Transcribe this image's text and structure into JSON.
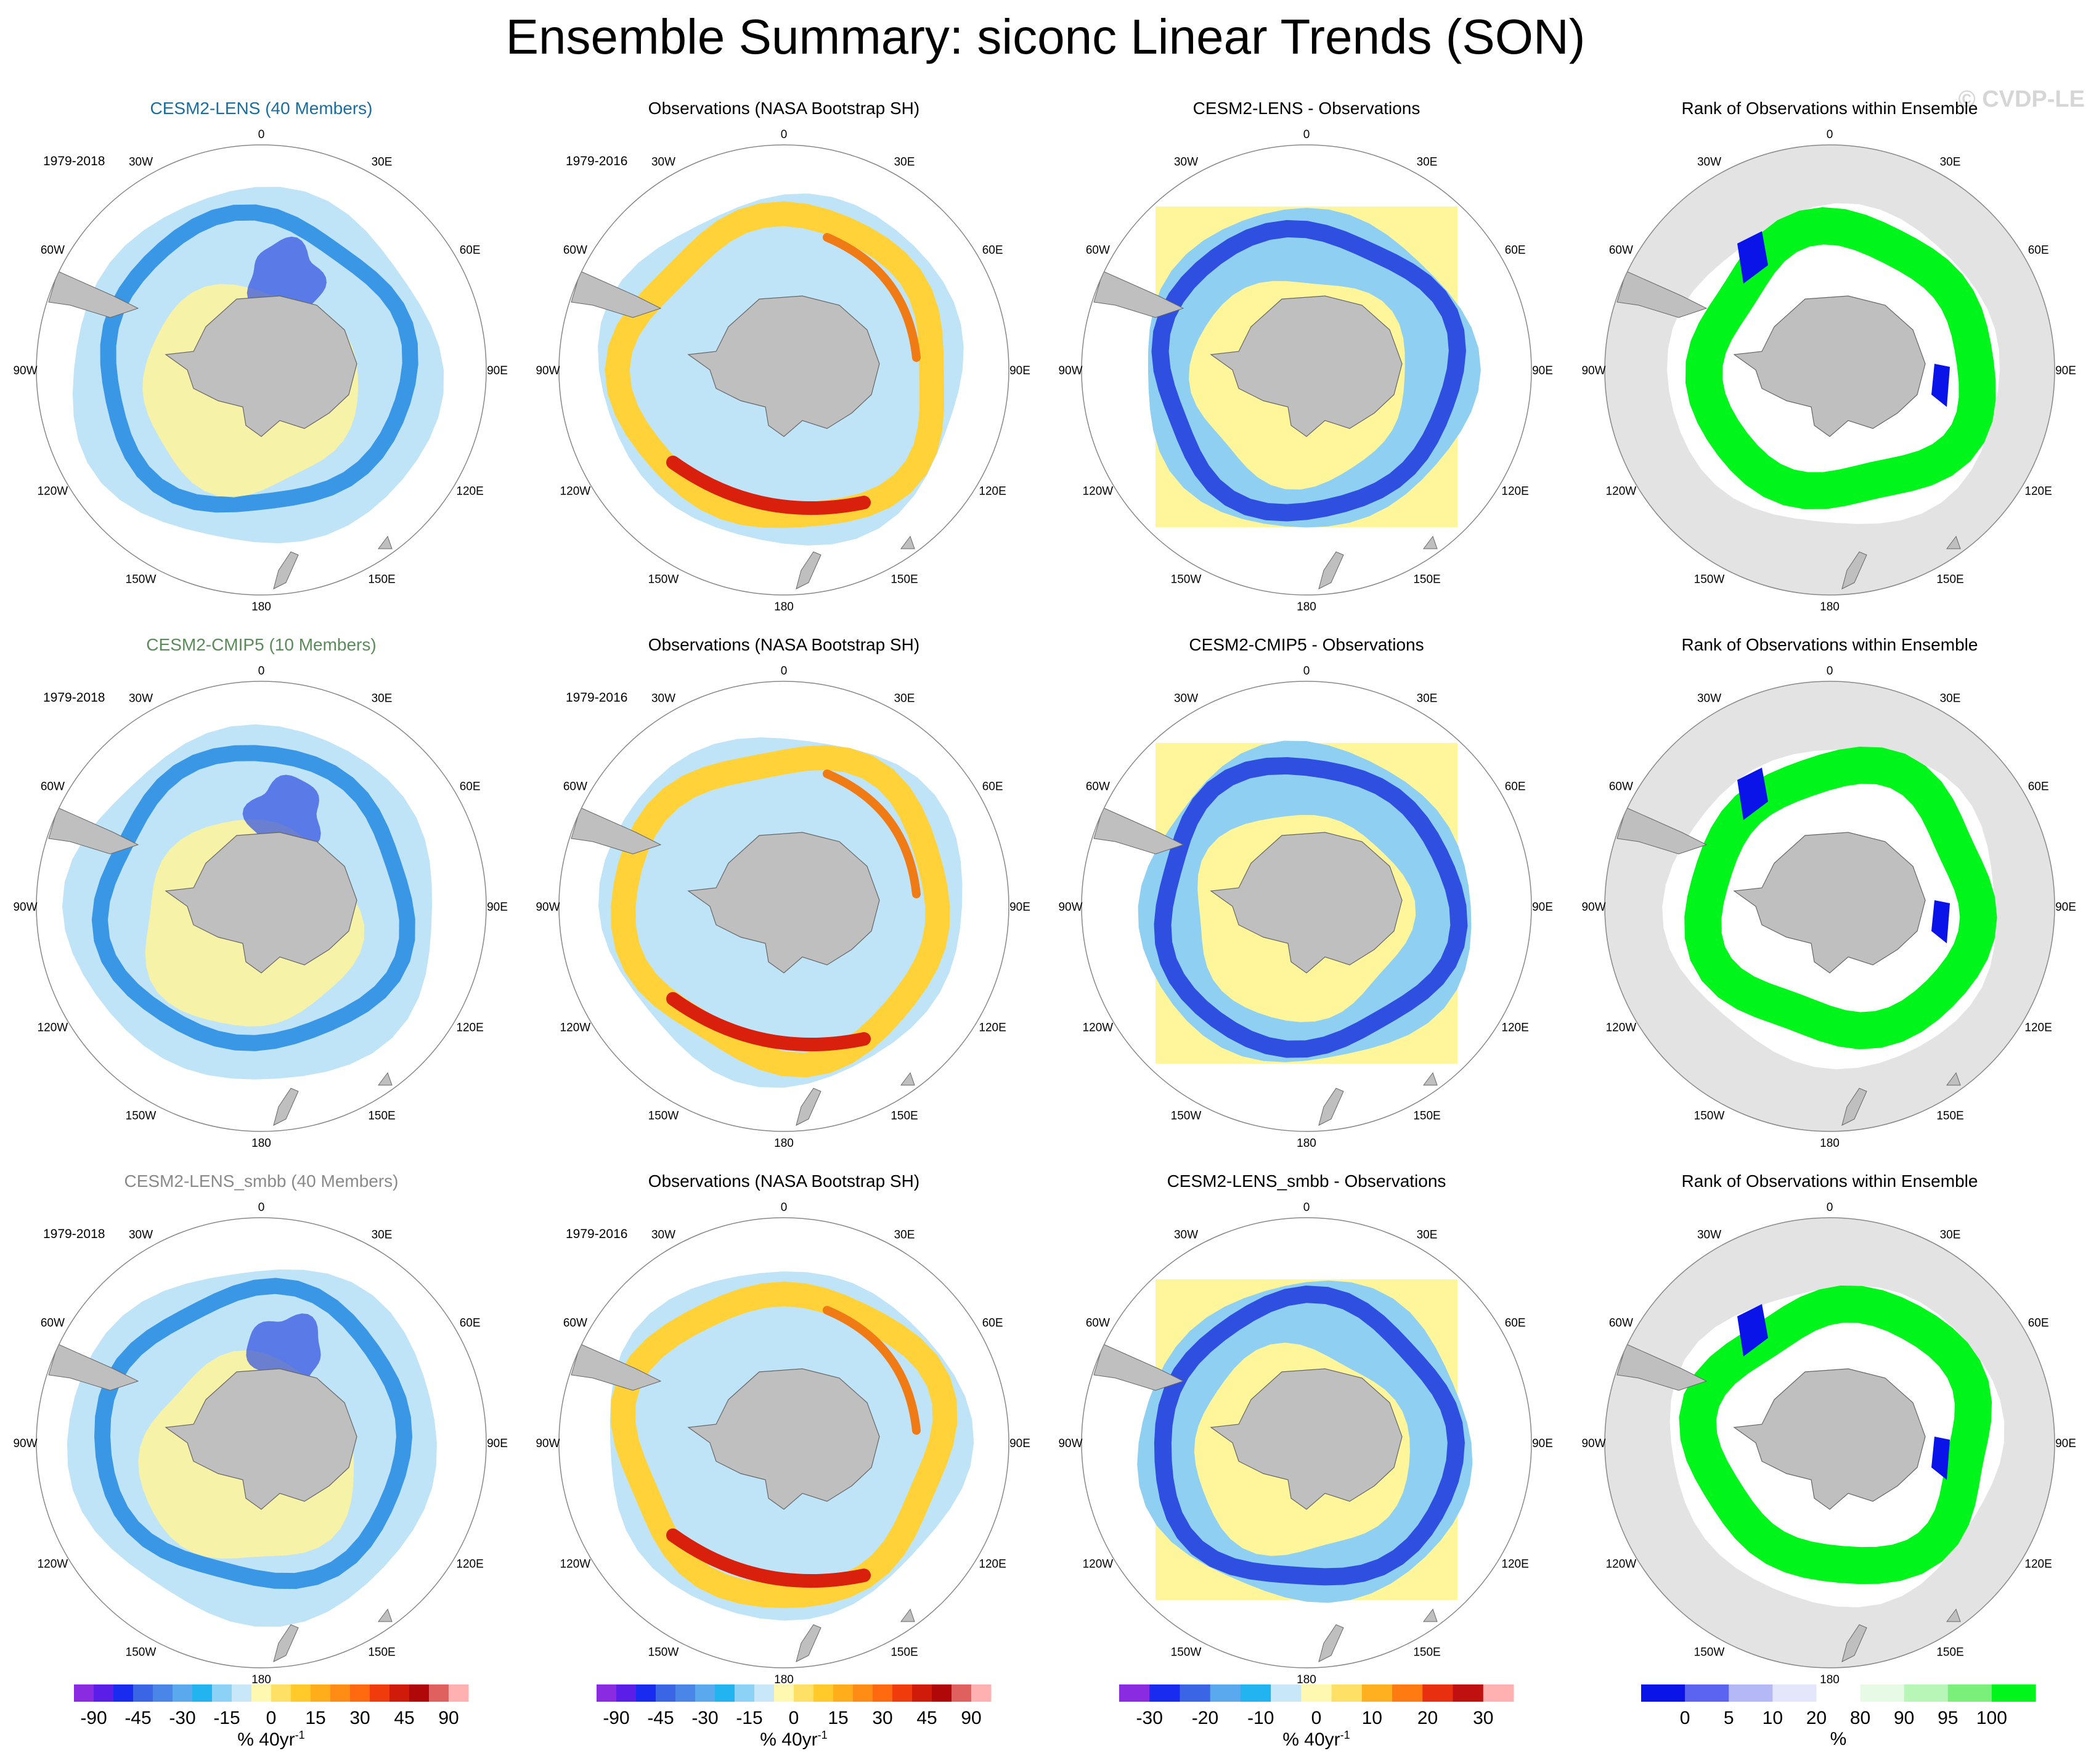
{
  "title": "Ensemble Summary: siconc Linear Trends (SON)",
  "watermark": "© CVDP-LE",
  "lon_labels": [
    "0",
    "30E",
    "60E",
    "90E",
    "120E",
    "150E",
    "180",
    "150W",
    "120W",
    "90W",
    "60W",
    "30W"
  ],
  "colors": {
    "land": "#bfbfbf",
    "ring_light": "#bfe3f7",
    "ring_mid": "#8fd0f2",
    "ring_dark": "#3a97e6",
    "ring_deep": "#2f4fe0",
    "warm_light": "#fff59a",
    "warm_mid": "#ffd23a",
    "warm_dark": "#f07a14",
    "warm_deep": "#d8200c",
    "rank_green": "#00f51a",
    "rank_blue": "#0a14e8",
    "rank_bg": "#e3e3e3"
  },
  "rows": [
    {
      "model_title": "CESM2-LENS (40 Members)",
      "model_title_color": "#1a6e9e",
      "model_period": "1979-2018",
      "obs_title": "Observations (NASA Bootstrap SH)",
      "obs_period": "1979-2016",
      "diff_title": "CESM2-LENS - Observations",
      "rank_title": "Rank of Observations within Ensemble"
    },
    {
      "model_title": "CESM2-CMIP5 (10 Members)",
      "model_title_color": "#5a8c5a",
      "model_period": "1979-2018",
      "obs_title": "Observations (NASA Bootstrap SH)",
      "obs_period": "1979-2016",
      "diff_title": "CESM2-CMIP5 - Observations",
      "rank_title": "Rank of Observations within Ensemble"
    },
    {
      "model_title": "CESM2-LENS_smbb (40 Members)",
      "model_title_color": "#8a8a8a",
      "model_period": "1979-2018",
      "obs_title": "Observations (NASA Bootstrap SH)",
      "obs_period": "1979-2016",
      "diff_title": "CESM2-LENS_smbb - Observations",
      "rank_title": "Rank of Observations within Ensemble"
    }
  ],
  "colorbars": [
    {
      "id": "model",
      "labels": [
        "-90",
        "-45",
        "-30",
        "-15",
        "0",
        "15",
        "30",
        "45",
        "90"
      ],
      "colors": [
        "#8a2be2",
        "#5a1ee8",
        "#1a2bf0",
        "#3a66e6",
        "#4a86e8",
        "#5aa8ee",
        "#22b4f0",
        "#8cd2f6",
        "#c8e8fa",
        "#fff8b0",
        "#ffe066",
        "#ffca2a",
        "#ffad1a",
        "#ff8c14",
        "#ff6a10",
        "#f03c0c",
        "#d01a0a",
        "#b00808",
        "#e06060",
        "#ffb0b0"
      ],
      "unit": "% 40yr",
      "unit_sup": "-1"
    },
    {
      "id": "obs",
      "labels": [
        "-90",
        "-45",
        "-30",
        "-15",
        "0",
        "15",
        "30",
        "45",
        "90"
      ],
      "colors": [
        "#8a2be2",
        "#5a1ee8",
        "#1a2bf0",
        "#3a66e6",
        "#4a86e8",
        "#5aa8ee",
        "#22b4f0",
        "#8cd2f6",
        "#c8e8fa",
        "#fff8b0",
        "#ffe066",
        "#ffca2a",
        "#ffad1a",
        "#ff8c14",
        "#ff6a10",
        "#f03c0c",
        "#d01a0a",
        "#b00808",
        "#e06060",
        "#ffb0b0"
      ],
      "unit": "% 40yr",
      "unit_sup": "-1"
    },
    {
      "id": "diff",
      "labels": [
        "-30",
        "-20",
        "-10",
        "0",
        "10",
        "20",
        "30"
      ],
      "colors": [
        "#8a2be2",
        "#1a2bf0",
        "#3a66e6",
        "#5aa8ee",
        "#22b4f0",
        "#c8e8fa",
        "#fff8b0",
        "#ffe066",
        "#ffb020",
        "#ff7a10",
        "#e83010",
        "#c01010",
        "#ffb0b0"
      ],
      "unit": "% 40yr",
      "unit_sup": "-1"
    },
    {
      "id": "rank",
      "labels": [
        "0",
        "5",
        "10",
        "20",
        "80",
        "90",
        "95",
        "100"
      ],
      "colors": [
        "#0a14e8",
        "#5a64f0",
        "#b4b8f6",
        "#e4e6fc",
        "#ffffff",
        "#e6fae6",
        "#b8f6b8",
        "#7af07a",
        "#00f51a"
      ],
      "unit": "%",
      "unit_sup": ""
    }
  ]
}
